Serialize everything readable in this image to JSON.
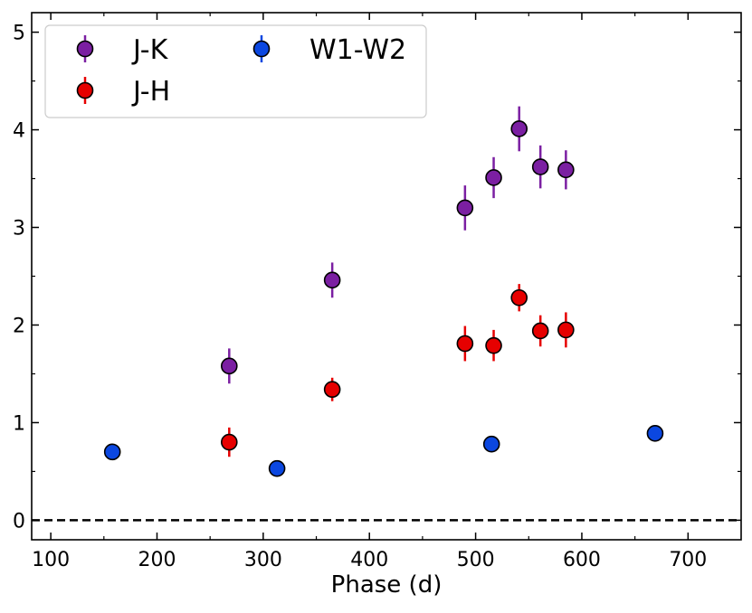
{
  "chart_data": {
    "type": "scatter",
    "title": "",
    "xlabel": "Phase (d)",
    "ylabel": "",
    "xlim": [
      82,
      750
    ],
    "ylim": [
      -0.2,
      5.2
    ],
    "xticks": [
      100,
      200,
      300,
      400,
      500,
      600,
      700
    ],
    "yticks": [
      0,
      1,
      2,
      3,
      4,
      5
    ],
    "xtick_labels": [
      "100",
      "200",
      "300",
      "400",
      "500",
      "600",
      "700"
    ],
    "ytick_labels": [
      "0",
      "1",
      "2",
      "3",
      "4",
      "5"
    ],
    "legend_position": "top-left",
    "grid": false,
    "reference_line": {
      "y": 0,
      "style": "dashed",
      "color": "#000000"
    },
    "series": [
      {
        "name": "J-K",
        "color": "#7b1fa2",
        "x": [
          268,
          365,
          490,
          517,
          541,
          561,
          585
        ],
        "y": [
          1.58,
          2.46,
          3.2,
          3.51,
          4.01,
          3.62,
          3.59
        ],
        "yerr": [
          0.18,
          0.18,
          0.23,
          0.21,
          0.23,
          0.22,
          0.2
        ]
      },
      {
        "name": "J-H",
        "color": "#e60000",
        "x": [
          268,
          365,
          490,
          517,
          541,
          561,
          585
        ],
        "y": [
          0.8,
          1.34,
          1.81,
          1.79,
          2.28,
          1.94,
          1.95
        ],
        "yerr": [
          0.15,
          0.12,
          0.18,
          0.16,
          0.14,
          0.16,
          0.18
        ]
      },
      {
        "name": "W1-W2",
        "color": "#0b47e0",
        "x": [
          158,
          313,
          515,
          669
        ],
        "y": [
          0.7,
          0.53,
          0.78,
          0.89
        ],
        "yerr": [
          0.02,
          0.02,
          0.02,
          0.02
        ]
      }
    ]
  }
}
